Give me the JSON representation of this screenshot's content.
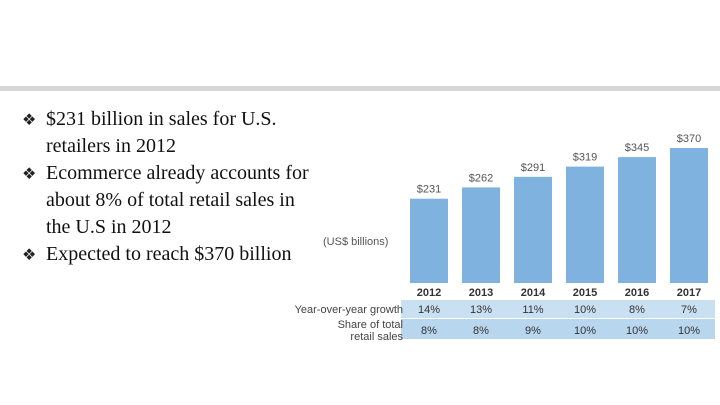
{
  "bullets": [
    "$231 billion in sales for U.S. retailers in 2012",
    "Ecommerce already accounts for about 8% of total retail sales in the U.S in 2012",
    "Expected to reach $370 billion"
  ],
  "chart_data": {
    "type": "bar",
    "unit_label": "(US$ billions)",
    "categories": [
      "2012",
      "2013",
      "2014",
      "2015",
      "2016",
      "2017"
    ],
    "values": [
      231,
      262,
      291,
      319,
      345,
      370
    ],
    "value_labels": [
      "$231",
      "$262",
      "$291",
      "$319",
      "$345",
      "$370"
    ],
    "bar_color": "#7fb2de",
    "table_rows": [
      {
        "label": "Year-over-year growth",
        "values": [
          "14%",
          "13%",
          "11%",
          "10%",
          "8%",
          "7%"
        ]
      },
      {
        "label": "Share of total retail sales",
        "values": [
          "8%",
          "8%",
          "9%",
          "10%",
          "10%",
          "10%"
        ]
      }
    ]
  }
}
